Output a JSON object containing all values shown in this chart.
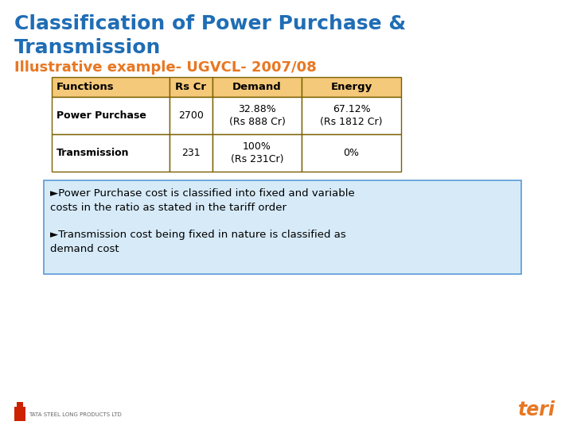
{
  "title_line1": "Classification of Power Purchase &",
  "title_line2": "Transmission",
  "subtitle": "Illustrative example- UGVCL- 2007/08",
  "title_color": "#1F6DB5",
  "subtitle_color": "#E87722",
  "bg_color": "#FFFFFF",
  "table_header_bg": "#F5C97A",
  "table_row_bg": "#FFFFFF",
  "table_border_color": "#7A6000",
  "table_headers": [
    "Functions",
    "Rs Cr",
    "Demand",
    "Energy"
  ],
  "row1_col0": "Power Purchase",
  "row1_col1": "2700",
  "row1_col2": "32.88%\n(Rs 888 Cr)",
  "row1_col3": "67.12%\n(Rs 1812 Cr)",
  "row2_col0": "Transmission",
  "row2_col1": "231",
  "row2_col2": "100%\n(Rs 231Cr)",
  "row2_col3": "0%",
  "bullet1": "►Power Purchase cost is classified into fixed and variable\ncosts in the ratio as stated in the tariff order",
  "bullet2": "►Transmission cost being fixed in nature is classified as\ndemand cost",
  "bullet_box_bg": "#D6EAF8",
  "bullet_box_border": "#5B9BD5",
  "footer_text": "TATA STEEL LONG PRODUCTS LTD"
}
